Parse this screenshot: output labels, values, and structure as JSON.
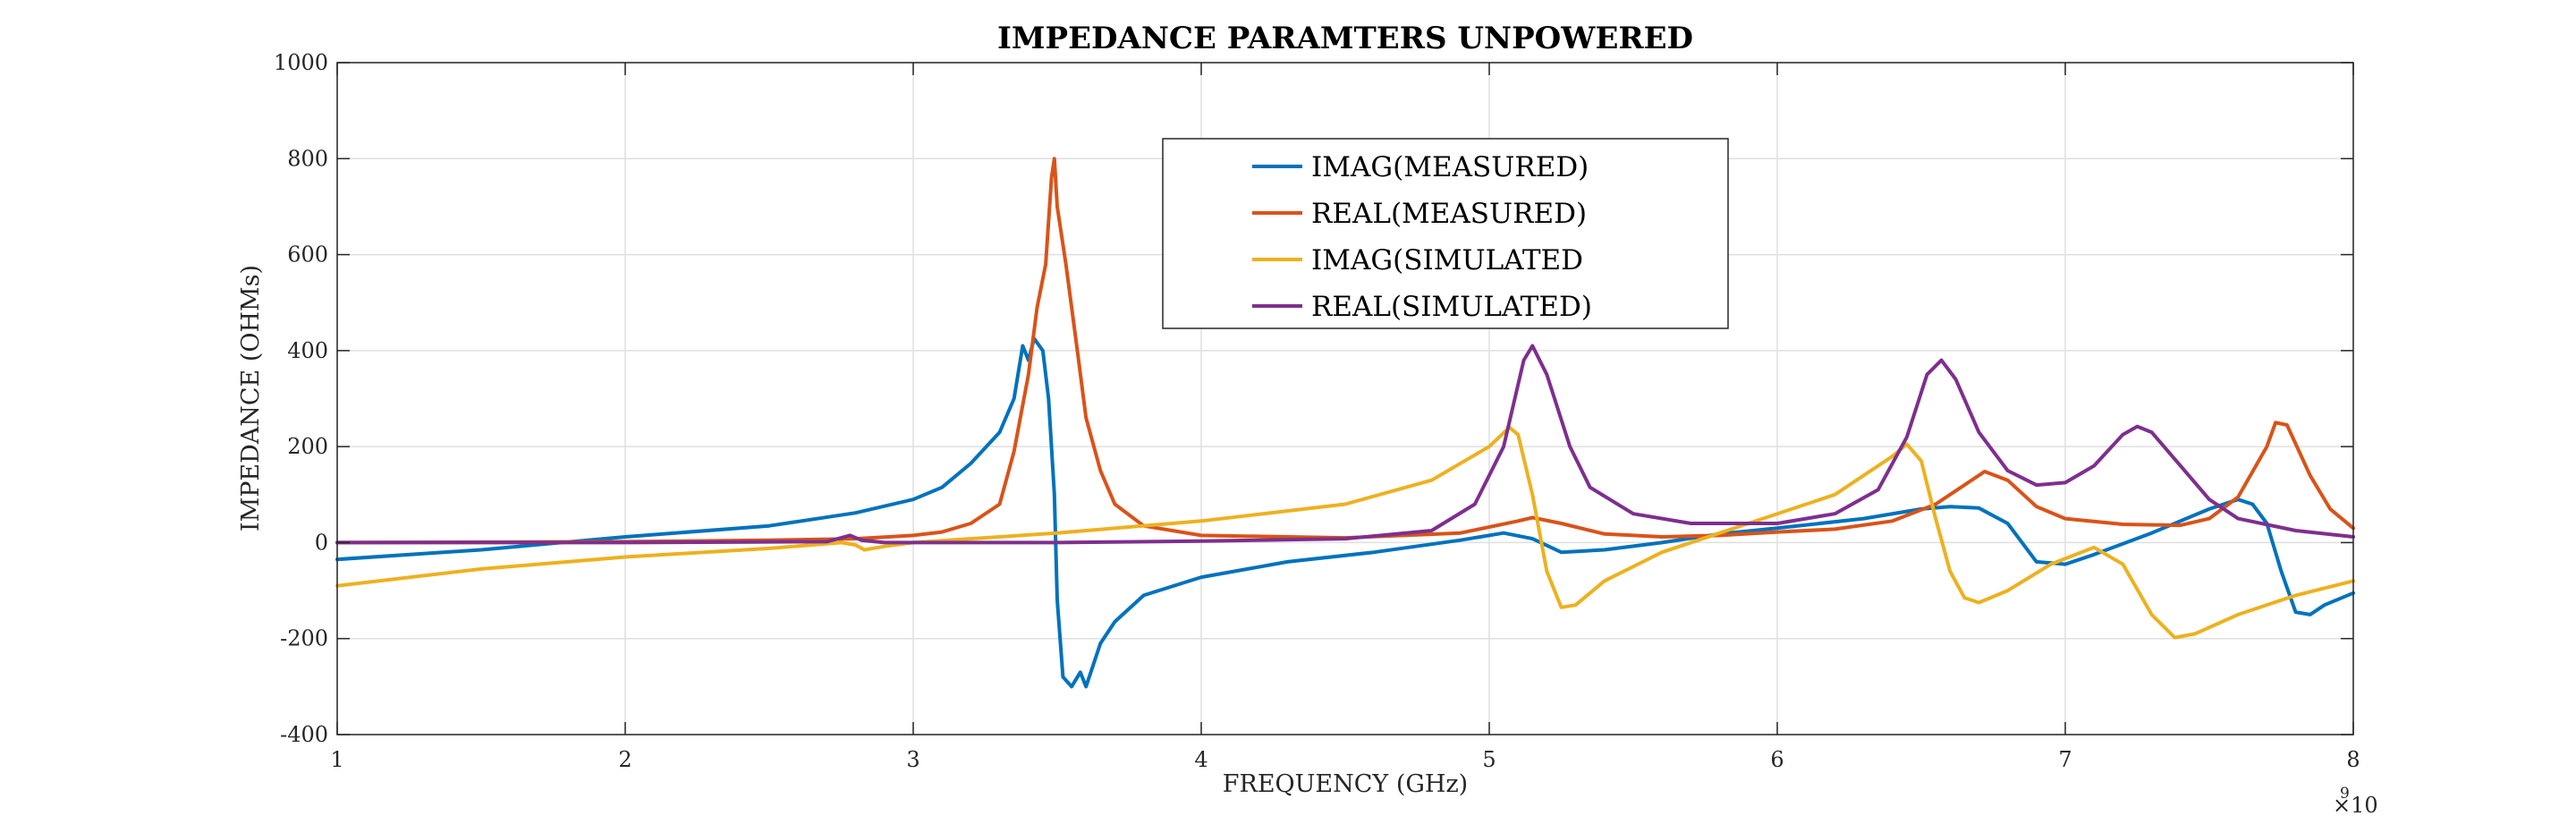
{
  "chart_data": {
    "type": "line",
    "title": "IMPEDANCE PARAMTERS UNPOWERED",
    "xlabel": "FREQUENCY  (GHz)",
    "ylabel": "IMPEDANCE (OHMs)",
    "x_exponent_base": "×10",
    "x_exponent_power": "9",
    "xlim": [
      1,
      8
    ],
    "ylim": [
      -400,
      1000
    ],
    "x_ticks": [
      "1",
      "2",
      "3",
      "4",
      "5",
      "6",
      "7",
      "8"
    ],
    "y_ticks": [
      "-400",
      "-200",
      "0",
      "200",
      "400",
      "600",
      "800",
      "1000"
    ],
    "grid": true,
    "legend_position": "top-center",
    "series": [
      {
        "name": "IMAG(MEASURED)",
        "color": "#0072BD",
        "points": [
          [
            1,
            -35
          ],
          [
            1.5,
            -15
          ],
          [
            2,
            12
          ],
          [
            2.5,
            35
          ],
          [
            2.8,
            62
          ],
          [
            3.0,
            90
          ],
          [
            3.1,
            115
          ],
          [
            3.2,
            165
          ],
          [
            3.3,
            230
          ],
          [
            3.35,
            300
          ],
          [
            3.38,
            410
          ],
          [
            3.4,
            380
          ],
          [
            3.42,
            425
          ],
          [
            3.45,
            400
          ],
          [
            3.47,
            300
          ],
          [
            3.49,
            100
          ],
          [
            3.5,
            -120
          ],
          [
            3.52,
            -280
          ],
          [
            3.55,
            -300
          ],
          [
            3.58,
            -270
          ],
          [
            3.6,
            -300
          ],
          [
            3.65,
            -210
          ],
          [
            3.7,
            -165
          ],
          [
            3.8,
            -110
          ],
          [
            4.0,
            -72
          ],
          [
            4.3,
            -40
          ],
          [
            4.6,
            -20
          ],
          [
            4.9,
            5
          ],
          [
            5.05,
            20
          ],
          [
            5.15,
            8
          ],
          [
            5.25,
            -20
          ],
          [
            5.4,
            -15
          ],
          [
            5.6,
            0
          ],
          [
            5.8,
            18
          ],
          [
            6.0,
            30
          ],
          [
            6.3,
            50
          ],
          [
            6.5,
            70
          ],
          [
            6.6,
            75
          ],
          [
            6.7,
            72
          ],
          [
            6.8,
            40
          ],
          [
            6.9,
            -40
          ],
          [
            7.0,
            -45
          ],
          [
            7.1,
            -25
          ],
          [
            7.3,
            20
          ],
          [
            7.5,
            70
          ],
          [
            7.6,
            90
          ],
          [
            7.65,
            80
          ],
          [
            7.7,
            40
          ],
          [
            7.75,
            -60
          ],
          [
            7.8,
            -145
          ],
          [
            7.85,
            -150
          ],
          [
            7.9,
            -130
          ],
          [
            8.0,
            -105
          ]
        ]
      },
      {
        "name": "REAL(MEASURED)",
        "color": "#D95319",
        "points": [
          [
            1,
            0
          ],
          [
            2,
            2
          ],
          [
            2.5,
            5
          ],
          [
            2.8,
            8
          ],
          [
            3.0,
            15
          ],
          [
            3.1,
            22
          ],
          [
            3.2,
            40
          ],
          [
            3.3,
            80
          ],
          [
            3.35,
            190
          ],
          [
            3.4,
            350
          ],
          [
            3.43,
            490
          ],
          [
            3.46,
            580
          ],
          [
            3.48,
            760
          ],
          [
            3.49,
            800
          ],
          [
            3.5,
            700
          ],
          [
            3.53,
            580
          ],
          [
            3.57,
            400
          ],
          [
            3.6,
            260
          ],
          [
            3.65,
            150
          ],
          [
            3.7,
            80
          ],
          [
            3.8,
            35
          ],
          [
            4.0,
            15
          ],
          [
            4.5,
            10
          ],
          [
            4.9,
            20
          ],
          [
            5.1,
            45
          ],
          [
            5.15,
            52
          ],
          [
            5.25,
            40
          ],
          [
            5.4,
            18
          ],
          [
            5.6,
            12
          ],
          [
            5.8,
            15
          ],
          [
            6.0,
            22
          ],
          [
            6.2,
            28
          ],
          [
            6.4,
            45
          ],
          [
            6.55,
            80
          ],
          [
            6.65,
            120
          ],
          [
            6.72,
            148
          ],
          [
            6.8,
            130
          ],
          [
            6.9,
            75
          ],
          [
            7.0,
            50
          ],
          [
            7.2,
            38
          ],
          [
            7.4,
            36
          ],
          [
            7.5,
            50
          ],
          [
            7.6,
            95
          ],
          [
            7.7,
            200
          ],
          [
            7.73,
            250
          ],
          [
            7.77,
            245
          ],
          [
            7.85,
            140
          ],
          [
            7.92,
            70
          ],
          [
            8.0,
            30
          ]
        ]
      },
      {
        "name": "IMAG(SIMULATED",
        "color": "#EDB120",
        "points": [
          [
            1,
            -90
          ],
          [
            1.5,
            -55
          ],
          [
            2,
            -30
          ],
          [
            2.5,
            -12
          ],
          [
            2.75,
            0
          ],
          [
            2.8,
            -5
          ],
          [
            2.83,
            -15
          ],
          [
            2.9,
            -8
          ],
          [
            3.0,
            0
          ],
          [
            3.5,
            20
          ],
          [
            4.0,
            45
          ],
          [
            4.5,
            80
          ],
          [
            4.8,
            130
          ],
          [
            5.0,
            200
          ],
          [
            5.07,
            240
          ],
          [
            5.1,
            225
          ],
          [
            5.15,
            100
          ],
          [
            5.2,
            -60
          ],
          [
            5.25,
            -135
          ],
          [
            5.3,
            -130
          ],
          [
            5.4,
            -80
          ],
          [
            5.6,
            -20
          ],
          [
            5.9,
            40
          ],
          [
            6.2,
            100
          ],
          [
            6.4,
            180
          ],
          [
            6.45,
            205
          ],
          [
            6.5,
            170
          ],
          [
            6.55,
            50
          ],
          [
            6.6,
            -60
          ],
          [
            6.65,
            -115
          ],
          [
            6.7,
            -125
          ],
          [
            6.8,
            -100
          ],
          [
            6.95,
            -45
          ],
          [
            7.1,
            -10
          ],
          [
            7.2,
            -45
          ],
          [
            7.3,
            -150
          ],
          [
            7.38,
            -198
          ],
          [
            7.45,
            -190
          ],
          [
            7.6,
            -150
          ],
          [
            7.8,
            -110
          ],
          [
            8.0,
            -80
          ]
        ]
      },
      {
        "name": "REAL(SIMULATED)",
        "color": "#7E2F8E",
        "points": [
          [
            1,
            0
          ],
          [
            2,
            0
          ],
          [
            2.7,
            2
          ],
          [
            2.78,
            15
          ],
          [
            2.82,
            5
          ],
          [
            2.9,
            0
          ],
          [
            3.5,
            0
          ],
          [
            4.0,
            3
          ],
          [
            4.5,
            8
          ],
          [
            4.8,
            25
          ],
          [
            4.95,
            80
          ],
          [
            5.05,
            200
          ],
          [
            5.12,
            380
          ],
          [
            5.15,
            410
          ],
          [
            5.2,
            350
          ],
          [
            5.28,
            200
          ],
          [
            5.35,
            115
          ],
          [
            5.5,
            60
          ],
          [
            5.7,
            40
          ],
          [
            6.0,
            40
          ],
          [
            6.2,
            60
          ],
          [
            6.35,
            110
          ],
          [
            6.45,
            220
          ],
          [
            6.52,
            350
          ],
          [
            6.57,
            380
          ],
          [
            6.62,
            340
          ],
          [
            6.7,
            230
          ],
          [
            6.8,
            150
          ],
          [
            6.9,
            120
          ],
          [
            7.0,
            125
          ],
          [
            7.1,
            160
          ],
          [
            7.2,
            225
          ],
          [
            7.25,
            242
          ],
          [
            7.3,
            230
          ],
          [
            7.4,
            160
          ],
          [
            7.5,
            90
          ],
          [
            7.6,
            50
          ],
          [
            7.8,
            25
          ],
          [
            8.0,
            12
          ]
        ]
      }
    ]
  }
}
